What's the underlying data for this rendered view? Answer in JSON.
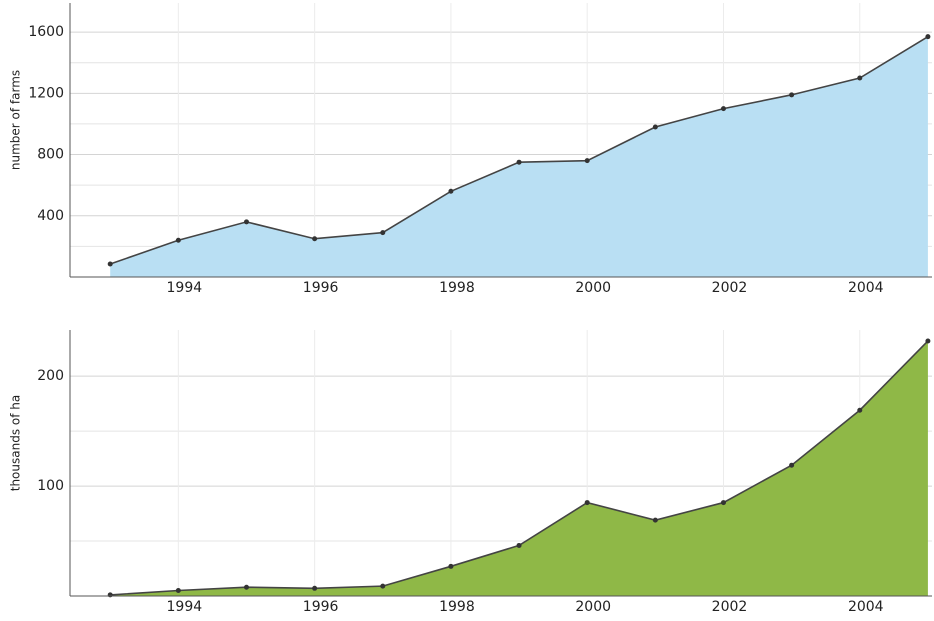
{
  "chart_data": [
    {
      "type": "area",
      "y_label": "number of farms",
      "x": [
        1993,
        1994,
        1995,
        1996,
        1997,
        1998,
        1999,
        2000,
        2001,
        2002,
        2003,
        2004,
        2005
      ],
      "series": [
        {
          "color": "#b9dff3",
          "values": [
            85,
            240,
            360,
            250,
            290,
            560,
            750,
            760,
            980,
            1100,
            1190,
            1300,
            1570
          ]
        }
      ],
      "xlim": [
        1992.41,
        2005.06
      ],
      "xticks": [
        1994,
        1996,
        1998,
        2000,
        2002,
        2004
      ],
      "ylim": [
        0,
        1790
      ],
      "yticks": [
        400,
        800,
        1200,
        1600
      ],
      "minor_yticks": [
        200,
        600,
        1000,
        1400
      ],
      "grid": true
    },
    {
      "type": "area",
      "y_label": "thousands of ha",
      "x": [
        1993,
        1994,
        1995,
        1996,
        1997,
        1998,
        1999,
        2000,
        2001,
        2002,
        2003,
        2004,
        2005
      ],
      "series": [
        {
          "color": "#8fb847",
          "values": [
            1,
            5,
            8,
            7,
            9,
            27,
            46,
            85,
            69,
            85,
            119,
            169,
            232
          ]
        }
      ],
      "xlim": [
        1992.41,
        2005.06
      ],
      "xticks": [
        1994,
        1996,
        1998,
        2000,
        2002,
        2004
      ],
      "ylim": [
        0,
        242
      ],
      "yticks": [
        100,
        200
      ],
      "minor_yticks": [
        50,
        150
      ],
      "grid": true
    }
  ]
}
